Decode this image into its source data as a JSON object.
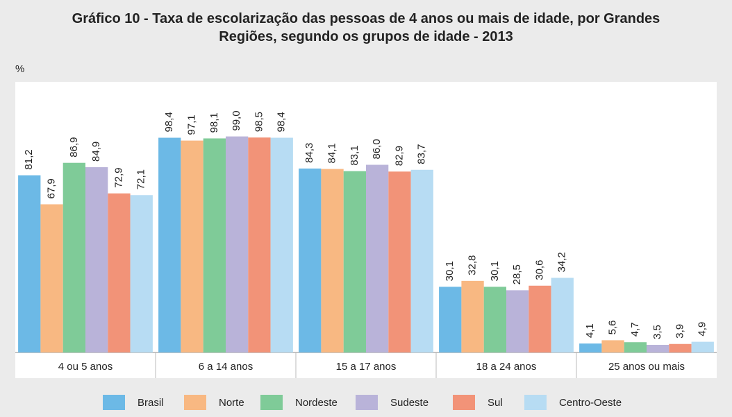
{
  "chart_data": {
    "type": "bar",
    "title": "Gráfico 10 - Taxa de escolarização das pessoas de 4 anos ou mais de idade, por Grandes Regiões, segundo os grupos de idade - 2013",
    "y_label": "%",
    "categories": [
      "4 ou 5 anos",
      "6 a 14 anos",
      "15 a 17 anos",
      "18 a 24 anos",
      "25 anos ou mais"
    ],
    "series": [
      {
        "name": "Brasil",
        "color": "#6cb9e6",
        "values": [
          81.2,
          98.4,
          84.3,
          30.1,
          4.1
        ],
        "value_labels": [
          "81,2",
          "98,4",
          "84,3",
          "30,1",
          "4,1"
        ]
      },
      {
        "name": "Norte",
        "color": "#f8b882",
        "values": [
          67.9,
          97.1,
          84.1,
          32.8,
          5.6
        ],
        "value_labels": [
          "67,9",
          "97,1",
          "84,1",
          "32,8",
          "5,6"
        ]
      },
      {
        "name": "Nordeste",
        "color": "#7fcb98",
        "values": [
          86.9,
          98.1,
          83.1,
          30.1,
          4.7
        ],
        "value_labels": [
          "86,9",
          "98,1",
          "83,1",
          "30,1",
          "4,7"
        ]
      },
      {
        "name": "Sudeste",
        "color": "#b9b3d9",
        "values": [
          84.9,
          99.0,
          86.0,
          28.5,
          3.5
        ],
        "value_labels": [
          "84,9",
          "99,0",
          "86,0",
          "28,5",
          "3,5"
        ]
      },
      {
        "name": "Sul",
        "color": "#f29378",
        "values": [
          72.9,
          98.5,
          82.9,
          30.6,
          3.9
        ],
        "value_labels": [
          "72,9",
          "98,5",
          "82,9",
          "30,6",
          "3,9"
        ]
      },
      {
        "name": "Centro-Oeste",
        "color": "#b7dcf3",
        "values": [
          72.1,
          98.4,
          83.7,
          34.2,
          4.9
        ],
        "value_labels": [
          "72,1",
          "98,4",
          "83,7",
          "34,2",
          "4,9"
        ]
      }
    ],
    "ylim": [
      0,
      124
    ]
  }
}
